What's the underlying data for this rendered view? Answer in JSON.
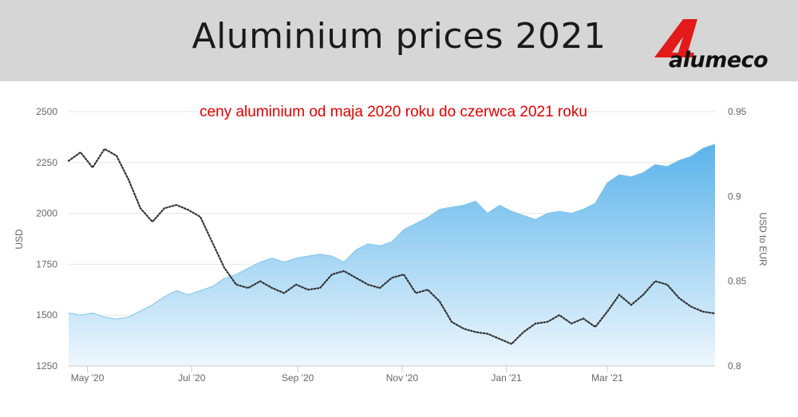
{
  "header": {
    "title": "Aluminium prices 2021",
    "logo_text": "alumeco"
  },
  "colors": {
    "header_bg": "#d6d6d6",
    "subtitle": "#e00000",
    "area_top": "#5bb3ea",
    "area_bottom": "#eef7fd",
    "line": "#333333",
    "logo_red": "#e21a1a"
  },
  "chart_data": {
    "type": "area",
    "title": "ceny aluminium od maja 2020 roku do czerwca 2021 roku",
    "xlabel": "",
    "ylabel": "USD",
    "y2label": "USD to EUR",
    "x_ticks": [
      "May '20",
      "Jul '20",
      "Sep '20",
      "Nov '20",
      "Jan '21",
      "Mar '21"
    ],
    "ylim": [
      1250,
      2500
    ],
    "y_ticks": [
      "2500",
      "2250",
      "2000",
      "1750",
      "1500",
      "1250"
    ],
    "y2lim": [
      0.8,
      0.95
    ],
    "y2_ticks": [
      "0.95",
      "0.9",
      "0.85",
      "0.8"
    ],
    "grid": true,
    "series": [
      {
        "axis": "left",
        "style": "area",
        "x": [
          "2020-04-20",
          "2020-04-27",
          "2020-05-04",
          "2020-05-11",
          "2020-05-18",
          "2020-05-25",
          "2020-06-01",
          "2020-06-08",
          "2020-06-15",
          "2020-06-22",
          "2020-06-29",
          "2020-07-06",
          "2020-07-13",
          "2020-07-20",
          "2020-07-27",
          "2020-08-03",
          "2020-08-10",
          "2020-08-17",
          "2020-08-24",
          "2020-08-31",
          "2020-09-07",
          "2020-09-14",
          "2020-09-21",
          "2020-09-28",
          "2020-10-05",
          "2020-10-12",
          "2020-10-19",
          "2020-10-26",
          "2020-11-02",
          "2020-11-09",
          "2020-11-16",
          "2020-11-23",
          "2020-11-30",
          "2020-12-07",
          "2020-12-14",
          "2020-12-21",
          "2020-12-28",
          "2021-01-04",
          "2021-01-11",
          "2021-01-18",
          "2021-01-25",
          "2021-02-01",
          "2021-02-08",
          "2021-02-15",
          "2021-02-22",
          "2021-03-01",
          "2021-03-08",
          "2021-03-15",
          "2021-03-22",
          "2021-03-29",
          "2021-04-05",
          "2021-04-12",
          "2021-04-19",
          "2021-04-26",
          "2021-05-03"
        ],
        "values": [
          1510,
          1500,
          1510,
          1490,
          1480,
          1490,
          1520,
          1550,
          1590,
          1620,
          1600,
          1620,
          1640,
          1680,
          1700,
          1730,
          1760,
          1780,
          1760,
          1780,
          1790,
          1800,
          1790,
          1760,
          1820,
          1850,
          1840,
          1860,
          1920,
          1950,
          1980,
          2020,
          2030,
          2040,
          2060,
          2000,
          2040,
          2010,
          1990,
          1970,
          2000,
          2010,
          2000,
          2020,
          2050,
          2150,
          2190,
          2180,
          2200,
          2240,
          2230,
          2260,
          2280,
          2320,
          2340
        ]
      },
      {
        "axis": "right",
        "style": "dotted-line",
        "x": [
          "2020-04-20",
          "2020-04-27",
          "2020-05-04",
          "2020-05-11",
          "2020-05-18",
          "2020-05-25",
          "2020-06-01",
          "2020-06-08",
          "2020-06-15",
          "2020-06-22",
          "2020-06-29",
          "2020-07-06",
          "2020-07-13",
          "2020-07-20",
          "2020-07-27",
          "2020-08-03",
          "2020-08-10",
          "2020-08-17",
          "2020-08-24",
          "2020-08-31",
          "2020-09-07",
          "2020-09-14",
          "2020-09-21",
          "2020-09-28",
          "2020-10-05",
          "2020-10-12",
          "2020-10-19",
          "2020-10-26",
          "2020-11-02",
          "2020-11-09",
          "2020-11-16",
          "2020-11-23",
          "2020-11-30",
          "2020-12-07",
          "2020-12-14",
          "2020-12-21",
          "2020-12-28",
          "2021-01-04",
          "2021-01-11",
          "2021-01-18",
          "2021-01-25",
          "2021-02-01",
          "2021-02-08",
          "2021-02-15",
          "2021-02-22",
          "2021-03-01",
          "2021-03-08",
          "2021-03-15",
          "2021-03-22",
          "2021-03-29",
          "2021-04-05",
          "2021-04-12",
          "2021-04-19",
          "2021-04-26",
          "2021-05-03"
        ],
        "values": [
          0.921,
          0.926,
          0.917,
          0.928,
          0.924,
          0.91,
          0.893,
          0.885,
          0.893,
          0.895,
          0.892,
          0.888,
          0.873,
          0.858,
          0.848,
          0.846,
          0.85,
          0.846,
          0.843,
          0.848,
          0.845,
          0.846,
          0.854,
          0.856,
          0.852,
          0.848,
          0.846,
          0.852,
          0.854,
          0.843,
          0.845,
          0.838,
          0.826,
          0.822,
          0.82,
          0.819,
          0.816,
          0.813,
          0.82,
          0.825,
          0.826,
          0.83,
          0.825,
          0.828,
          0.823,
          0.832,
          0.842,
          0.836,
          0.842,
          0.85,
          0.848,
          0.84,
          0.835,
          0.832,
          0.831
        ]
      }
    ]
  }
}
